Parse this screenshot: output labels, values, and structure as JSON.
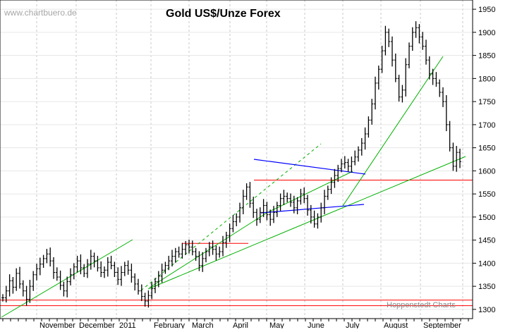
{
  "chart_data": {
    "type": "ohlc",
    "title": "Gold US$/Unze Forex",
    "watermark": "www.chartbuero.de",
    "source": "Hoppenstedt Charts",
    "ylim": [
      1280,
      1970
    ],
    "y_ticks": [
      1300,
      1350,
      1400,
      1450,
      1500,
      1550,
      1600,
      1650,
      1700,
      1750,
      1800,
      1850,
      1900,
      1950
    ],
    "x_labels": [
      "November",
      "December",
      "2011",
      "February",
      "March",
      "April",
      "May",
      "June",
      "July",
      "August",
      "September"
    ],
    "grid": true,
    "colors": {
      "bars": "#000000",
      "horizontal_lines": "#ff0000",
      "trend_lines": "#00b000",
      "triangle_lines": "#0000ff",
      "grid": "#c8c8c8"
    },
    "horizontal_levels": [
      1580,
      1320,
      1308,
      1443
    ],
    "series": [
      {
        "values": [
          1325,
          1340,
          1362,
          1348,
          1378,
          1355,
          1340,
          1322,
          1350,
          1375,
          1388,
          1398,
          1410,
          1420,
          1405,
          1380,
          1370,
          1352,
          1340,
          1360,
          1375,
          1392,
          1405,
          1390,
          1378,
          1398,
          1415,
          1405,
          1390,
          1380,
          1385,
          1402,
          1395,
          1380,
          1365,
          1380,
          1395,
          1385,
          1370,
          1355,
          1340,
          1328,
          1318,
          1330,
          1345,
          1360,
          1372,
          1385,
          1395,
          1405,
          1415,
          1425,
          1420,
          1430,
          1440,
          1435,
          1425,
          1415,
          1395,
          1410,
          1425,
          1435,
          1430,
          1420,
          1425,
          1445,
          1460,
          1475,
          1490,
          1500,
          1520,
          1545,
          1565,
          1530,
          1510,
          1495,
          1510,
          1525,
          1505,
          1495,
          1510,
          1525,
          1540,
          1545,
          1540,
          1532,
          1520,
          1535,
          1550,
          1540,
          1515,
          1500,
          1485,
          1500,
          1520,
          1545,
          1560,
          1575,
          1590,
          1605,
          1615,
          1618,
          1610,
          1620,
          1630,
          1645,
          1660,
          1680,
          1710,
          1745,
          1790,
          1820,
          1860,
          1900,
          1880,
          1840,
          1800,
          1760,
          1775,
          1830,
          1870,
          1900,
          1910,
          1890,
          1870,
          1840,
          1810,
          1800,
          1790,
          1770,
          1750,
          1700,
          1650,
          1610,
          1640,
          1620
        ]
      }
    ]
  }
}
